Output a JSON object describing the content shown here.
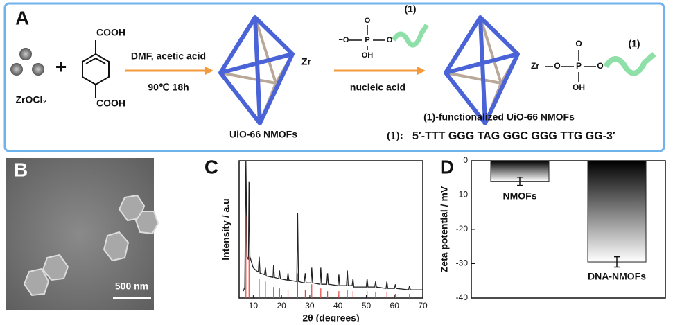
{
  "panels": {
    "a": {
      "label": "A",
      "reagent": "ZrOCl₂",
      "plus": "+",
      "acid_top": "COOH",
      "acid_bottom": "COOH",
      "condition_1": "DMF, acetic acid",
      "condition_2": "90℃ 18h",
      "zr_1": "Zr",
      "product_1": "UiO-66 NMOFs",
      "linker_charge_o": "−O",
      "linker_p": "P",
      "linker_o_top": "O",
      "linker_oh": "OH",
      "linker_o_right": "O",
      "linker_tag": "(1)",
      "condition_3": "nucleic acid",
      "zr_2": "Zr",
      "o_2": "O",
      "p_2": "P",
      "o_top_2": "O",
      "oh_2": "OH",
      "o_right_2": "O",
      "tag_2": "(1)",
      "product_2": "(1)-functionalized UiO-66 NMOFs",
      "sequence_tag": "(1):",
      "sequence": "5′-TTT GGG TAG GGC GGG TTG GG-3′"
    },
    "b": {
      "label": "B",
      "scale_bar": "500 nm"
    }
  },
  "chart_data": [
    {
      "type": "line",
      "panel": "C",
      "xlabel": "2θ (degrees)",
      "ylabel": "Intensity / a.u",
      "xlim": [
        5,
        70
      ],
      "xticks": [
        10,
        20,
        30,
        40,
        50,
        60,
        70
      ],
      "ylim": [
        0,
        100
      ],
      "x": [
        6.5,
        7,
        7.4,
        7.8,
        8.3,
        8.5,
        8.8,
        10,
        11,
        11.8,
        12.1,
        12.4,
        14,
        14.3,
        14.6,
        17,
        17.2,
        17.5,
        19,
        19.3,
        19.6,
        22,
        22.3,
        22.6,
        25.4,
        25.7,
        26,
        28,
        28.4,
        28.7,
        30.4,
        30.7,
        31,
        33.6,
        33.9,
        34.2,
        36,
        36.3,
        36.6,
        40,
        40.3,
        40.6,
        43,
        43.3,
        43.6,
        45,
        45.3,
        45.6,
        50,
        50.3,
        50.6,
        53,
        53.3,
        53.6,
        57,
        57.3,
        57.6,
        60,
        60.3,
        60.6,
        65,
        65.3,
        65.6,
        70
      ],
      "series": [
        {
          "color": "#222222",
          "values": [
            5,
            8,
            100,
            30,
            28,
            85,
            30,
            22,
            20,
            19,
            30,
            18,
            17,
            22,
            16,
            15,
            24,
            15,
            14,
            20,
            14,
            13,
            18,
            13,
            12,
            62,
            12,
            11,
            18,
            11,
            11,
            22,
            11,
            10,
            22,
            10,
            10,
            18,
            10,
            9,
            17,
            9,
            9,
            20,
            9,
            9,
            14,
            8,
            8,
            14,
            8,
            8,
            12,
            8,
            7,
            12,
            7,
            7,
            10,
            7,
            6,
            9,
            6,
            6
          ]
        },
        {
          "color": "#e8413c",
          "style": "sticks",
          "x": [
            7.4,
            8.5,
            12.1,
            14.3,
            17.2,
            19.3,
            22.3,
            25.7,
            28.4,
            30.7,
            33.9,
            36.3,
            40.3,
            43.3,
            45.3,
            50.3,
            53.3,
            57.3,
            60.3,
            65.3
          ],
          "values": [
            60,
            30,
            14,
            12,
            8,
            7,
            6,
            18,
            6,
            10,
            7,
            5,
            5,
            6,
            5,
            5,
            4,
            4,
            3,
            3
          ]
        }
      ]
    },
    {
      "type": "bar",
      "panel": "D",
      "ylabel": "Zeta potential / mV",
      "categories": [
        "NMOFs",
        "DNA-NMOFs"
      ],
      "values": [
        -6,
        -29.5
      ],
      "errors": [
        1.2,
        1.5
      ],
      "gradient": [
        "#000000",
        "#ffffff"
      ],
      "ylim": [
        -40,
        0
      ],
      "yticks": [
        0,
        -10,
        -20,
        -30,
        -40
      ]
    }
  ]
}
